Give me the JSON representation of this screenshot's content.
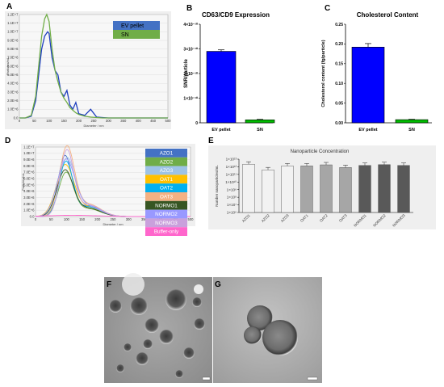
{
  "panels": {
    "A": "A",
    "B": "B",
    "C": "C",
    "D": "D",
    "E": "E",
    "F": "F",
    "G": "G"
  },
  "panel_A": {
    "xlabel": "Diameter / nm",
    "ylabel": "Particles/mL",
    "yticks": [
      "0.0",
      "1.0E+6",
      "2.0E+6",
      "3.0E+6",
      "4.0E+6",
      "5.0E+6",
      "6.0E+6",
      "7.0E+6",
      "8.0E+6",
      "9.0E+6",
      "1.0E+7",
      "1.1E+7",
      "1.2E+7"
    ],
    "xticks": [
      "0",
      "50",
      "100",
      "150",
      "200",
      "250",
      "300",
      "350",
      "400",
      "450",
      "500"
    ],
    "legend": [
      {
        "label": "EV pellet",
        "color": "#4472c4"
      },
      {
        "label": "SN",
        "color": "#70ad47"
      }
    ]
  },
  "panel_D": {
    "xlabel": "Diameter / nm",
    "ylabel": "Particles/mL",
    "yticks": [
      "0.0",
      "1.0E+6",
      "2.0E+6",
      "3.0E+6",
      "4.0E+6",
      "5.0E+6",
      "6.0E+6",
      "7.0E+6",
      "8.0E+6",
      "9.0E+6",
      "1.0E+7",
      "1.1E+7"
    ],
    "xticks": [
      "0",
      "50",
      "100",
      "150",
      "200",
      "250",
      "300",
      "350",
      "400",
      "450",
      "500"
    ],
    "legend": [
      {
        "label": "AZO1",
        "color": "#4472c4"
      },
      {
        "label": "AZO2",
        "color": "#70ad47"
      },
      {
        "label": "AZO3",
        "color": "#9dc3e6"
      },
      {
        "label": "OAT1",
        "color": "#ffc000"
      },
      {
        "label": "OAT2",
        "color": "#00b0f0"
      },
      {
        "label": "OAT3",
        "color": "#f4b183"
      },
      {
        "label": "NORMO1",
        "color": "#375623"
      },
      {
        "label": "NORMO2",
        "color": "#9999ff"
      },
      {
        "label": "NORMO3",
        "color": "#c9a0dc"
      },
      {
        "label": "Buffer-only",
        "color": "#ff66cc"
      }
    ]
  },
  "chart_data": [
    {
      "type": "bar",
      "title": "CD63/CD9 Expression",
      "ylabel": "SNR/particle",
      "categories": [
        "EV pellet",
        "SN"
      ],
      "values": [
        2.9e-10,
        1.2e-11
      ],
      "errors": [
        6e-12,
        2e-12
      ],
      "colors": [
        "#0000ff",
        "#00bb00"
      ],
      "yticks": [
        "0",
        "1×10⁻¹⁰",
        "2×10⁻¹⁰",
        "3×10⁻¹⁰",
        "4×10⁻¹⁰"
      ],
      "ylim": [
        0,
        4e-10
      ]
    },
    {
      "type": "bar",
      "title": "Cholesterol Content",
      "ylabel": "Cholesterol content (fg/particle)",
      "categories": [
        "EV pellet",
        "SN"
      ],
      "values": [
        0.192,
        0.008
      ],
      "errors": [
        0.009,
        0.001
      ],
      "colors": [
        "#0000ff",
        "#00bb00"
      ],
      "yticks": [
        "0.00",
        "0.05",
        "0.10",
        "0.15",
        "0.20",
        "0.25"
      ],
      "ylim": [
        0,
        0.25
      ]
    },
    {
      "type": "bar",
      "title": "Nanoparticle Concentration",
      "ylabel": "Number nanoparticles/mL",
      "log_scale": true,
      "categories": [
        "AZO1",
        "AZO2",
        "AZO3",
        "OAT1",
        "OAT2",
        "OAT3",
        "NORMO1",
        "NORMO2",
        "NORMO3"
      ],
      "values": [
        2200000000000.0,
        400000000000.0,
        1300000000000.0,
        1300000000000.0,
        1800000000000.0,
        800000000000.0,
        1500000000000.0,
        1900000000000.0,
        1500000000000.0
      ],
      "colors": [
        "#f2f2f2",
        "#f2f2f2",
        "#f2f2f2",
        "#a6a6a6",
        "#a6a6a6",
        "#a6a6a6",
        "#595959",
        "#595959",
        "#595959"
      ],
      "yticks": [
        "1×10⁶",
        "1×10⁷",
        "1×10⁸",
        "1×10⁹",
        "1×10¹⁰",
        "1×10¹¹",
        "1×10¹²",
        "1×10¹³"
      ],
      "ylim": [
        1000000.0,
        10000000000000.0
      ]
    },
    {
      "type": "line",
      "panel": "A",
      "xlabel": "Diameter / nm",
      "ylabel": "Particles/mL",
      "xlim": [
        0,
        500
      ],
      "ylim": [
        0,
        12000000
      ],
      "series": [
        {
          "name": "EV pellet",
          "color": "#1f3fbf",
          "x": [
            0,
            20,
            40,
            55,
            65,
            75,
            85,
            95,
            100,
            110,
            120,
            130,
            140,
            150,
            160,
            170,
            180,
            190,
            200,
            220,
            240,
            260,
            280,
            300,
            350,
            400,
            450,
            500
          ],
          "y": [
            0,
            0,
            200000,
            2000000,
            5000000,
            8000000,
            9500000,
            10000000,
            9800000,
            7000000,
            5500000,
            5000000,
            3000000,
            2500000,
            3200000,
            1500000,
            1000000,
            1800000,
            500000,
            300000,
            1000000,
            100000,
            50000,
            0,
            0,
            0,
            0,
            0
          ]
        },
        {
          "name": "SN",
          "color": "#70ad47",
          "x": [
            0,
            20,
            40,
            55,
            65,
            75,
            85,
            92,
            100,
            110,
            120,
            130,
            140,
            150,
            160,
            170,
            180,
            190,
            200,
            220,
            240,
            260,
            280,
            300,
            350,
            400,
            450,
            500
          ],
          "y": [
            0,
            0,
            300000,
            2500000,
            6000000,
            9500000,
            11500000,
            12000000,
            11200000,
            8000000,
            5500000,
            4200000,
            3000000,
            2300000,
            1800000,
            1200000,
            900000,
            600000,
            400000,
            200000,
            100000,
            50000,
            0,
            0,
            0,
            0,
            0,
            0
          ]
        }
      ]
    },
    {
      "type": "line",
      "panel": "D",
      "xlabel": "Diameter / nm",
      "ylabel": "Particles/mL",
      "xlim": [
        0,
        500
      ],
      "ylim": [
        0,
        11000000
      ],
      "series": [
        {
          "name": "AZO1",
          "color": "#4472c4",
          "peak": 9400000
        },
        {
          "name": "AZO2",
          "color": "#70ad47",
          "peak": 6800000
        },
        {
          "name": "AZO3",
          "color": "#9dc3e6",
          "peak": 9000000
        },
        {
          "name": "OAT1",
          "color": "#ffc000",
          "peak": 8000000
        },
        {
          "name": "OAT2",
          "color": "#00b0f0",
          "peak": 8500000
        },
        {
          "name": "OAT3",
          "color": "#f4b183",
          "peak": 10800000
        },
        {
          "name": "NORMO1",
          "color": "#375623",
          "peak": 7200000
        },
        {
          "name": "NORMO2",
          "color": "#9999ff",
          "peak": 8800000
        },
        {
          "name": "NORMO3",
          "color": "#c9a0dc",
          "peak": 10200000
        },
        {
          "name": "Buffer-only",
          "color": "#ff66cc",
          "peak": 200000
        }
      ]
    }
  ]
}
